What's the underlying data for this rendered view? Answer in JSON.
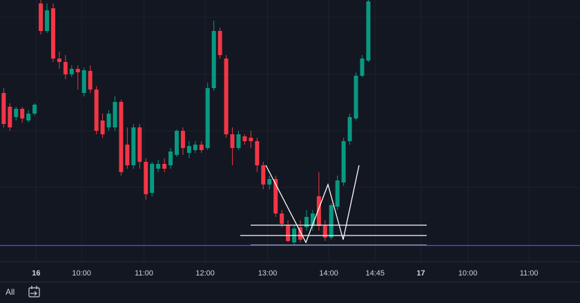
{
  "chart_data": {
    "type": "candlestick",
    "x": [
      0,
      1,
      2,
      3,
      4,
      5,
      6,
      7,
      8,
      9,
      10,
      11,
      12,
      13,
      14,
      15,
      16,
      17,
      18,
      19,
      20,
      21,
      22,
      23,
      24,
      25,
      26,
      27,
      28,
      29,
      30,
      31,
      32,
      33,
      34,
      35,
      36,
      37,
      38,
      39,
      40,
      41,
      42,
      43,
      44,
      45,
      46,
      47,
      48,
      49,
      50,
      51,
      52,
      53,
      54,
      55,
      56,
      57,
      58,
      59
    ],
    "open": [
      245,
      225,
      210,
      222,
      205,
      215,
      375,
      335,
      368,
      295,
      290,
      272,
      280,
      245,
      277,
      250,
      205,
      195,
      195,
      232,
      170,
      140,
      195,
      145,
      100,
      135,
      142,
      140,
      155,
      190,
      158,
      162,
      170,
      165,
      252,
      335,
      295,
      185,
      165,
      182,
      180,
      175,
      140,
      112,
      120,
      70,
      52,
      28,
      50,
      50,
      52,
      95,
      52,
      35,
      80,
      115,
      175,
      208,
      270,
      292
    ],
    "high": [
      252,
      230,
      225,
      225,
      220,
      230,
      380,
      375,
      375,
      305,
      300,
      285,
      285,
      282,
      285,
      255,
      215,
      220,
      240,
      235,
      195,
      200,
      200,
      150,
      145,
      148,
      150,
      165,
      192,
      195,
      175,
      175,
      175,
      260,
      350,
      340,
      300,
      195,
      190,
      185,
      190,
      180,
      145,
      125,
      125,
      75,
      60,
      52,
      60,
      75,
      75,
      130,
      60,
      85,
      125,
      180,
      215,
      275,
      300,
      380
    ],
    "low": [
      195,
      190,
      205,
      202,
      202,
      212,
      330,
      332,
      290,
      280,
      265,
      268,
      250,
      240,
      245,
      185,
      180,
      190,
      190,
      125,
      135,
      135,
      135,
      90,
      95,
      130,
      130,
      135,
      152,
      155,
      150,
      158,
      158,
      162,
      248,
      295,
      180,
      140,
      162,
      170,
      165,
      130,
      105,
      105,
      65,
      50,
      28,
      25,
      28,
      45,
      45,
      45,
      30,
      32,
      75,
      110,
      170,
      205,
      268,
      290
    ],
    "close": [
      200,
      195,
      222,
      208,
      215,
      228,
      335,
      365,
      295,
      290,
      272,
      280,
      275,
      278,
      250,
      190,
      185,
      215,
      232,
      130,
      140,
      195,
      145,
      98,
      142,
      142,
      135,
      160,
      190,
      165,
      168,
      170,
      162,
      252,
      335,
      300,
      185,
      165,
      185,
      175,
      175,
      140,
      112,
      120,
      70,
      55,
      30,
      48,
      32,
      65,
      70,
      52,
      35,
      82,
      118,
      175,
      210,
      270,
      295,
      378
    ],
    "up_color": "#089981",
    "down_color": "#f23645",
    "xlim": [
      -0.6,
      93.25
    ],
    "ylim": [
      0,
      380
    ],
    "xticks": [
      {
        "value": 5.25,
        "label": "16"
      },
      {
        "value": 12.6,
        "label": "10:00"
      },
      {
        "value": 22.7,
        "label": "11:00"
      },
      {
        "value": 32.6,
        "label": "12:00"
      },
      {
        "value": 42.7,
        "label": "13:00"
      },
      {
        "value": 52.6,
        "label": "14:00"
      },
      {
        "value": 60.1,
        "label": "14:45"
      },
      {
        "value": 67.5,
        "label": "17"
      },
      {
        "value": 75.1,
        "label": "10:00"
      },
      {
        "value": 85.0,
        "label": "11:00"
      }
    ],
    "grid": true
  },
  "toolbar": {
    "range": "All"
  }
}
